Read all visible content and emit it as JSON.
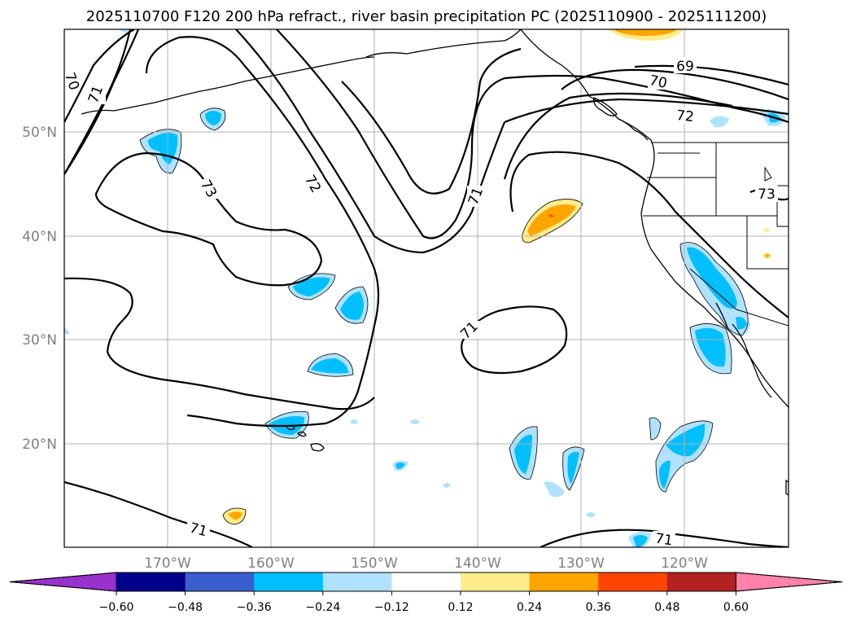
{
  "title": "2025110700 F120 200 hPa refract., river basin precipitation PC (2025110900 - 2025111200)",
  "map": {
    "lon_ticks": [
      "170°W",
      "160°W",
      "150°W",
      "140°W",
      "130°W",
      "120°W"
    ],
    "lat_ticks": [
      "50°N",
      "40°N",
      "30°N",
      "20°N"
    ],
    "contour_labels": [
      "69",
      "70",
      "70",
      "71",
      "72",
      "72",
      "73",
      "71",
      "71",
      "71",
      "71",
      "73"
    ],
    "line_color": "#000000",
    "grid": true
  },
  "colorbar": {
    "ticks": [
      "−0.60",
      "−0.48",
      "−0.36",
      "−0.24",
      "−0.12",
      "0.12",
      "0.24",
      "0.36",
      "0.48",
      "0.60"
    ],
    "colors": [
      "#9932cc",
      "#00008b",
      "#3a5fcd",
      "#00bfff",
      "#b0e2ff",
      "#ffffff",
      "#ffec8b",
      "#ffa500",
      "#ff4500",
      "#b22222",
      "#ff82ab"
    ]
  },
  "shading": {
    "negative_light": "#b0e2ff",
    "negative_mid": "#00bfff",
    "positive_light": "#ffec8b",
    "positive_mid": "#ffa500",
    "positive_high": "#ff4500"
  }
}
